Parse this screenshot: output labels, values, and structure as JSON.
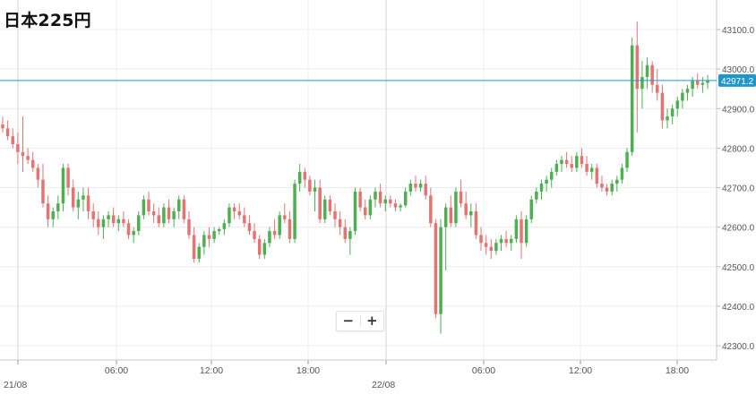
{
  "title": "日本225円",
  "zoom": {
    "minus_label": "−",
    "plus_label": "+"
  },
  "colors": {
    "up": "#4caf50",
    "down": "#e57373",
    "grid": "#ececec",
    "axis_text": "#555555",
    "price_line": "#1f97cc",
    "price_tag_bg": "#1f97cc"
  },
  "chart_data": {
    "type": "candlestick",
    "title": "日本225円",
    "y_axis": {
      "side": "right",
      "ticks": [
        42300,
        42400,
        42500,
        42600,
        42700,
        42800,
        42900,
        43000,
        43100
      ],
      "tick_labels": [
        "42300.0",
        "42400.0",
        "42500.0",
        "42600.0",
        "42700.0",
        "42800.0",
        "42900.0",
        "43000.0",
        "43100.0"
      ],
      "range": [
        42270,
        43150
      ]
    },
    "x_axis": {
      "tick_labels": [
        "21/08",
        "06:00",
        "12:00",
        "18:00",
        "22/08",
        "06:00",
        "12:00",
        "18:00"
      ],
      "day_separators": [
        "21/08",
        "22/08"
      ]
    },
    "current_price": {
      "value": 42971.2,
      "label": "42971.2"
    },
    "grid": true,
    "candles_ohlc": [
      [
        42860,
        42880,
        42840,
        42850
      ],
      [
        42850,
        42870,
        42820,
        42830
      ],
      [
        42830,
        42850,
        42800,
        42810
      ],
      [
        42810,
        42840,
        42760,
        42790
      ],
      [
        42790,
        42880,
        42740,
        42780
      ],
      [
        42780,
        42800,
        42760,
        42770
      ],
      [
        42770,
        42790,
        42740,
        42750
      ],
      [
        42750,
        42760,
        42700,
        42720
      ],
      [
        42720,
        42760,
        42650,
        42660
      ],
      [
        42660,
        42680,
        42600,
        42620
      ],
      [
        42620,
        42650,
        42600,
        42640
      ],
      [
        42640,
        42680,
        42620,
        42660
      ],
      [
        42660,
        42760,
        42640,
        42750
      ],
      [
        42750,
        42760,
        42680,
        42700
      ],
      [
        42700,
        42720,
        42640,
        42650
      ],
      [
        42650,
        42690,
        42620,
        42670
      ],
      [
        42670,
        42700,
        42640,
        42680
      ],
      [
        42680,
        42700,
        42620,
        42640
      ],
      [
        42640,
        42660,
        42600,
        42620
      ],
      [
        42620,
        42640,
        42580,
        42600
      ],
      [
        42600,
        42630,
        42570,
        42620
      ],
      [
        42620,
        42640,
        42600,
        42630
      ],
      [
        42630,
        42650,
        42600,
        42610
      ],
      [
        42610,
        42630,
        42590,
        42620
      ],
      [
        42620,
        42640,
        42600,
        42610
      ],
      [
        42610,
        42620,
        42570,
        42580
      ],
      [
        42580,
        42600,
        42560,
        42590
      ],
      [
        42590,
        42640,
        42580,
        42630
      ],
      [
        42630,
        42680,
        42620,
        42670
      ],
      [
        42670,
        42690,
        42630,
        42640
      ],
      [
        42640,
        42660,
        42610,
        42630
      ],
      [
        42630,
        42650,
        42600,
        42610
      ],
      [
        42610,
        42660,
        42600,
        42650
      ],
      [
        42650,
        42670,
        42610,
        42620
      ],
      [
        42620,
        42650,
        42600,
        42640
      ],
      [
        42640,
        42680,
        42620,
        42670
      ],
      [
        42670,
        42680,
        42610,
        42620
      ],
      [
        42620,
        42640,
        42570,
        42580
      ],
      [
        42580,
        42600,
        42510,
        42520
      ],
      [
        42520,
        42560,
        42510,
        42550
      ],
      [
        42550,
        42590,
        42530,
        42580
      ],
      [
        42580,
        42600,
        42550,
        42570
      ],
      [
        42570,
        42600,
        42560,
        42590
      ],
      [
        42590,
        42600,
        42580,
        42595
      ],
      [
        42595,
        42620,
        42580,
        42610
      ],
      [
        42610,
        42660,
        42600,
        42650
      ],
      [
        42650,
        42660,
        42620,
        42640
      ],
      [
        42640,
        42660,
        42620,
        42630
      ],
      [
        42630,
        42650,
        42600,
        42610
      ],
      [
        42610,
        42630,
        42580,
        42590
      ],
      [
        42590,
        42610,
        42560,
        42570
      ],
      [
        42570,
        42580,
        42520,
        42530
      ],
      [
        42530,
        42570,
        42520,
        42560
      ],
      [
        42560,
        42600,
        42550,
        42590
      ],
      [
        42590,
        42620,
        42570,
        42580
      ],
      [
        42580,
        42640,
        42570,
        42630
      ],
      [
        42630,
        42660,
        42610,
        42620
      ],
      [
        42620,
        42640,
        42560,
        42570
      ],
      [
        42570,
        42720,
        42560,
        42710
      ],
      [
        42710,
        42760,
        42690,
        42740
      ],
      [
        42740,
        42750,
        42700,
        42720
      ],
      [
        42720,
        42730,
        42680,
        42690
      ],
      [
        42690,
        42720,
        42640,
        42700
      ],
      [
        42700,
        42720,
        42610,
        42620
      ],
      [
        42620,
        42680,
        42610,
        42670
      ],
      [
        42670,
        42680,
        42630,
        42640
      ],
      [
        42640,
        42660,
        42600,
        42620
      ],
      [
        42620,
        42640,
        42580,
        42600
      ],
      [
        42600,
        42620,
        42560,
        42570
      ],
      [
        42570,
        42600,
        42530,
        42590
      ],
      [
        42590,
        42700,
        42580,
        42690
      ],
      [
        42690,
        42700,
        42640,
        42650
      ],
      [
        42650,
        42670,
        42620,
        42630
      ],
      [
        42630,
        42680,
        42620,
        42670
      ],
      [
        42670,
        42700,
        42650,
        42690
      ],
      [
        42690,
        42710,
        42650,
        42660
      ],
      [
        42660,
        42680,
        42640,
        42670
      ],
      [
        42670,
        42680,
        42650,
        42660
      ],
      [
        42660,
        42670,
        42640,
        42650
      ],
      [
        42650,
        42660,
        42640,
        42655
      ],
      [
        42655,
        42700,
        42650,
        42690
      ],
      [
        42690,
        42720,
        42680,
        42710
      ],
      [
        42710,
        42730,
        42690,
        42700
      ],
      [
        42700,
        42720,
        42690,
        42710
      ],
      [
        42710,
        42730,
        42670,
        42680
      ],
      [
        42680,
        42700,
        42600,
        42610
      ],
      [
        42610,
        42620,
        42370,
        42380
      ],
      [
        42380,
        42620,
        42330,
        42600
      ],
      [
        42600,
        42660,
        42490,
        42650
      ],
      [
        42650,
        42680,
        42600,
        42610
      ],
      [
        42610,
        42700,
        42600,
        42690
      ],
      [
        42690,
        42720,
        42650,
        42660
      ],
      [
        42660,
        42690,
        42620,
        42630
      ],
      [
        42630,
        42660,
        42600,
        42640
      ],
      [
        42640,
        42660,
        42570,
        42580
      ],
      [
        42580,
        42600,
        42540,
        42560
      ],
      [
        42560,
        42580,
        42530,
        42550
      ],
      [
        42550,
        42570,
        42520,
        42540
      ],
      [
        42540,
        42570,
        42530,
        42560
      ],
      [
        42560,
        42580,
        42540,
        42570
      ],
      [
        42570,
        42590,
        42550,
        42560
      ],
      [
        42560,
        42580,
        42540,
        42570
      ],
      [
        42570,
        42630,
        42560,
        42620
      ],
      [
        42620,
        42640,
        42520,
        42560
      ],
      [
        42560,
        42630,
        42550,
        42620
      ],
      [
        42620,
        42680,
        42610,
        42670
      ],
      [
        42670,
        42700,
        42660,
        42690
      ],
      [
        42690,
        42720,
        42670,
        42710
      ],
      [
        42710,
        42730,
        42690,
        42720
      ],
      [
        42720,
        42750,
        42700,
        42740
      ],
      [
        42740,
        42770,
        42730,
        42760
      ],
      [
        42760,
        42780,
        42740,
        42770
      ],
      [
        42770,
        42790,
        42750,
        42760
      ],
      [
        42760,
        42780,
        42740,
        42750
      ],
      [
        42750,
        42790,
        42740,
        42780
      ],
      [
        42780,
        42800,
        42750,
        42760
      ],
      [
        42760,
        42780,
        42730,
        42740
      ],
      [
        42740,
        42760,
        42720,
        42750
      ],
      [
        42750,
        42760,
        42700,
        42710
      ],
      [
        42710,
        42730,
        42690,
        42700
      ],
      [
        42700,
        42710,
        42680,
        42690
      ],
      [
        42690,
        42720,
        42680,
        42710
      ],
      [
        42710,
        42730,
        42690,
        42720
      ],
      [
        42720,
        42760,
        42710,
        42750
      ],
      [
        42750,
        42800,
        42740,
        42790
      ],
      [
        42790,
        43080,
        42780,
        43060
      ],
      [
        43060,
        43120,
        42840,
        42950
      ],
      [
        42950,
        43020,
        42900,
        42980
      ],
      [
        42980,
        43030,
        42950,
        43010
      ],
      [
        43010,
        43020,
        42940,
        42960
      ],
      [
        42960,
        43000,
        42920,
        42940
      ],
      [
        42940,
        42960,
        42850,
        42870
      ],
      [
        42870,
        42900,
        42850,
        42880
      ],
      [
        42880,
        42910,
        42860,
        42900
      ],
      [
        42900,
        42930,
        42880,
        42920
      ],
      [
        42920,
        42950,
        42900,
        42940
      ],
      [
        42940,
        42960,
        42920,
        42950
      ],
      [
        42950,
        42980,
        42930,
        42970
      ],
      [
        42970,
        42990,
        42950,
        42960
      ],
      [
        42960,
        42980,
        42940,
        42965
      ],
      [
        42965,
        42985,
        42950,
        42971
      ]
    ]
  }
}
